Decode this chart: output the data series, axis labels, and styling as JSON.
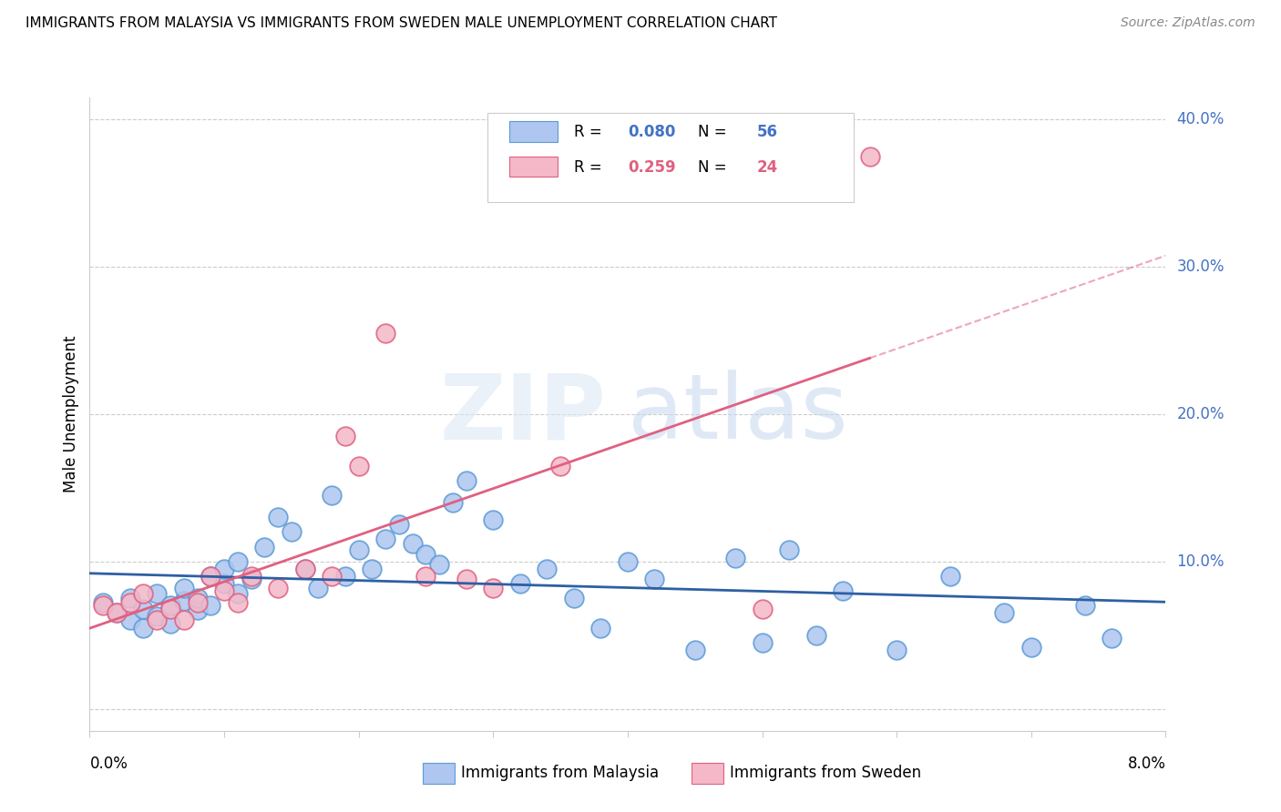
{
  "title": "IMMIGRANTS FROM MALAYSIA VS IMMIGRANTS FROM SWEDEN MALE UNEMPLOYMENT CORRELATION CHART",
  "source": "Source: ZipAtlas.com",
  "ylabel": "Male Unemployment",
  "xmin": 0.0,
  "xmax": 0.08,
  "ymin": -0.015,
  "ymax": 0.415,
  "yticks": [
    0.0,
    0.1,
    0.2,
    0.3,
    0.4
  ],
  "yticklabels": [
    "",
    "10.0%",
    "20.0%",
    "30.0%",
    "40.0%"
  ],
  "xtick_positions": [
    0.0,
    0.01,
    0.02,
    0.03,
    0.04,
    0.05,
    0.06,
    0.07,
    0.08
  ],
  "malaysia_color": "#aec6f0",
  "malaysia_edge_color": "#5b9bd5",
  "sweden_color": "#f4b8c8",
  "sweden_edge_color": "#e06080",
  "trend_malaysia_color": "#2e5fa3",
  "trend_sweden_color": "#e06080",
  "blue_text_color": "#4472c4",
  "pink_text_color": "#e06080",
  "grid_color": "#cccccc",
  "malaysia_R": "0.080",
  "malaysia_N": "56",
  "sweden_R": "0.259",
  "sweden_N": "24",
  "malaysia_x": [
    0.001,
    0.002,
    0.003,
    0.003,
    0.004,
    0.004,
    0.005,
    0.005,
    0.006,
    0.006,
    0.007,
    0.007,
    0.008,
    0.008,
    0.009,
    0.009,
    0.01,
    0.01,
    0.011,
    0.011,
    0.012,
    0.013,
    0.014,
    0.015,
    0.016,
    0.017,
    0.018,
    0.019,
    0.02,
    0.021,
    0.022,
    0.023,
    0.024,
    0.025,
    0.026,
    0.027,
    0.028,
    0.03,
    0.032,
    0.034,
    0.036,
    0.038,
    0.04,
    0.042,
    0.045,
    0.048,
    0.05,
    0.052,
    0.054,
    0.056,
    0.06,
    0.064,
    0.068,
    0.07,
    0.074,
    0.076
  ],
  "malaysia_y": [
    0.072,
    0.065,
    0.06,
    0.075,
    0.068,
    0.055,
    0.063,
    0.078,
    0.07,
    0.058,
    0.073,
    0.082,
    0.067,
    0.075,
    0.09,
    0.07,
    0.085,
    0.095,
    0.078,
    0.1,
    0.088,
    0.11,
    0.13,
    0.12,
    0.095,
    0.082,
    0.145,
    0.09,
    0.108,
    0.095,
    0.115,
    0.125,
    0.112,
    0.105,
    0.098,
    0.14,
    0.155,
    0.128,
    0.085,
    0.095,
    0.075,
    0.055,
    0.1,
    0.088,
    0.04,
    0.102,
    0.045,
    0.108,
    0.05,
    0.08,
    0.04,
    0.09,
    0.065,
    0.042,
    0.07,
    0.048
  ],
  "sweden_x": [
    0.001,
    0.002,
    0.003,
    0.004,
    0.005,
    0.006,
    0.007,
    0.008,
    0.009,
    0.01,
    0.011,
    0.012,
    0.014,
    0.016,
    0.018,
    0.019,
    0.02,
    0.022,
    0.025,
    0.028,
    0.03,
    0.035,
    0.05,
    0.058
  ],
  "sweden_y": [
    0.07,
    0.065,
    0.072,
    0.078,
    0.06,
    0.068,
    0.06,
    0.072,
    0.09,
    0.08,
    0.072,
    0.09,
    0.082,
    0.095,
    0.09,
    0.185,
    0.165,
    0.255,
    0.09,
    0.088,
    0.082,
    0.165,
    0.068,
    0.375
  ]
}
